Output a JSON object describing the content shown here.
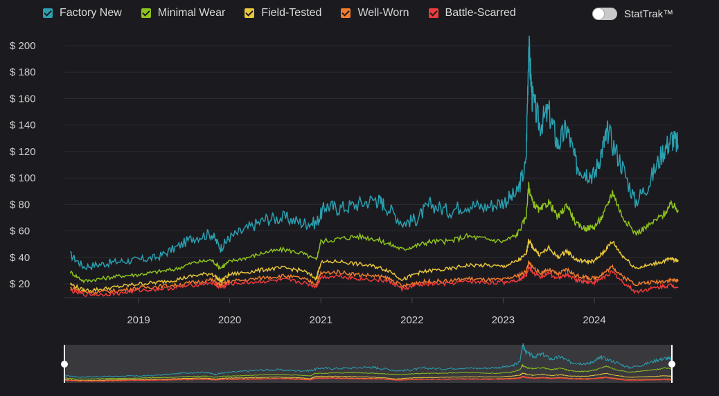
{
  "legend": [
    {
      "label": "Factory New",
      "color": "#2aa0b0"
    },
    {
      "label": "Minimal Wear",
      "color": "#8ec21e"
    },
    {
      "label": "Field-Tested",
      "color": "#e8c73a"
    },
    {
      "label": "Well-Worn",
      "color": "#f07c2c"
    },
    {
      "label": "Battle-Scarred",
      "color": "#ef3b3b"
    }
  ],
  "toggle": {
    "label": "StatTrak™",
    "on": false
  },
  "chart_data": {
    "type": "line",
    "x_ticks": [
      "2019",
      "2020",
      "2021",
      "2022",
      "2023",
      "2024"
    ],
    "y_ticks": [
      "$ 20",
      "$ 40",
      "$ 60",
      "$ 80",
      "$ 100",
      "$ 120",
      "$ 140",
      "$ 160",
      "$ 180",
      "$ 200"
    ],
    "ylim": [
      10,
      200
    ],
    "xlim": [
      2018.25,
      2024.92
    ],
    "grid": true,
    "legend_position": "top-left",
    "series": [
      {
        "name": "Factory New",
        "color": "#2aa0b0",
        "x": [
          2018.25,
          2018.4,
          2018.6,
          2018.8,
          2019.0,
          2019.2,
          2019.4,
          2019.6,
          2019.8,
          2019.9,
          2020.0,
          2020.2,
          2020.4,
          2020.6,
          2020.8,
          2020.95,
          2021.05,
          2021.2,
          2021.4,
          2021.6,
          2021.7,
          2021.9,
          2022.05,
          2022.2,
          2022.4,
          2022.6,
          2022.8,
          2023.0,
          2023.15,
          2023.25,
          2023.28,
          2023.32,
          2023.4,
          2023.5,
          2023.6,
          2023.7,
          2023.8,
          2023.9,
          2024.0,
          2024.1,
          2024.15,
          2024.3,
          2024.45,
          2024.6,
          2024.75,
          2024.85,
          2024.92
        ],
        "y": [
          42,
          33,
          35,
          37,
          38,
          40,
          47,
          55,
          58,
          47,
          55,
          62,
          69,
          70,
          66,
          66,
          79,
          77,
          80,
          84,
          80,
          66,
          69,
          80,
          75,
          80,
          78,
          82,
          88,
          110,
          200,
          160,
          140,
          150,
          125,
          138,
          110,
          105,
          102,
          125,
          135,
          110,
          82,
          96,
          120,
          130,
          125
        ]
      },
      {
        "name": "Minimal Wear",
        "color": "#8ec21e",
        "x": [
          2018.25,
          2018.4,
          2018.6,
          2018.8,
          2019.0,
          2019.2,
          2019.4,
          2019.6,
          2019.8,
          2019.9,
          2020.0,
          2020.2,
          2020.4,
          2020.6,
          2020.8,
          2020.95,
          2021.0,
          2021.2,
          2021.4,
          2021.6,
          2021.75,
          2021.9,
          2022.05,
          2022.2,
          2022.4,
          2022.6,
          2022.8,
          2023.0,
          2023.15,
          2023.25,
          2023.28,
          2023.32,
          2023.4,
          2023.5,
          2023.6,
          2023.7,
          2023.8,
          2023.9,
          2024.0,
          2024.1,
          2024.2,
          2024.3,
          2024.45,
          2024.6,
          2024.75,
          2024.85,
          2024.92
        ],
        "y": [
          29,
          22,
          24,
          26,
          27,
          29,
          31,
          36,
          38,
          32,
          37,
          40,
          44,
          46,
          43,
          38,
          52,
          54,
          56,
          54,
          50,
          46,
          49,
          52,
          52,
          56,
          54,
          52,
          57,
          70,
          94,
          82,
          75,
          82,
          70,
          80,
          65,
          62,
          63,
          72,
          90,
          72,
          58,
          64,
          72,
          80,
          76
        ]
      },
      {
        "name": "Field-Tested",
        "color": "#e8c73a",
        "x": [
          2018.25,
          2018.4,
          2018.6,
          2018.8,
          2019.0,
          2019.2,
          2019.4,
          2019.6,
          2019.8,
          2019.9,
          2020.0,
          2020.2,
          2020.4,
          2020.6,
          2020.8,
          2020.95,
          2021.0,
          2021.2,
          2021.4,
          2021.6,
          2021.75,
          2021.9,
          2022.05,
          2022.2,
          2022.4,
          2022.6,
          2022.8,
          2023.0,
          2023.15,
          2023.25,
          2023.28,
          2023.32,
          2023.4,
          2023.5,
          2023.6,
          2023.7,
          2023.8,
          2023.9,
          2024.0,
          2024.1,
          2024.2,
          2024.3,
          2024.45,
          2024.6,
          2024.75,
          2024.85,
          2024.92
        ],
        "y": [
          20,
          15,
          16,
          18,
          20,
          21,
          23,
          26,
          28,
          22,
          27,
          29,
          31,
          32,
          30,
          24,
          36,
          37,
          35,
          33,
          30,
          23,
          28,
          30,
          31,
          34,
          34,
          33,
          37,
          42,
          53,
          48,
          42,
          47,
          40,
          45,
          38,
          37,
          37,
          44,
          52,
          42,
          32,
          34,
          37,
          39,
          37
        ]
      },
      {
        "name": "Well-Worn",
        "color": "#f07c2c",
        "x": [
          2018.25,
          2018.4,
          2018.6,
          2018.8,
          2019.0,
          2019.2,
          2019.4,
          2019.6,
          2019.8,
          2019.9,
          2020.0,
          2020.2,
          2020.4,
          2020.6,
          2020.8,
          2020.95,
          2021.0,
          2021.2,
          2021.4,
          2021.6,
          2021.75,
          2021.9,
          2022.05,
          2022.2,
          2022.4,
          2022.6,
          2022.8,
          2023.0,
          2023.15,
          2023.25,
          2023.28,
          2023.32,
          2023.4,
          2023.5,
          2023.6,
          2023.7,
          2023.8,
          2023.9,
          2024.0,
          2024.1,
          2024.2,
          2024.3,
          2024.45,
          2024.6,
          2024.75,
          2024.85,
          2024.92
        ],
        "y": [
          17,
          14,
          14,
          15,
          17,
          18,
          19,
          21,
          23,
          19,
          22,
          23,
          25,
          26,
          24,
          20,
          28,
          29,
          27,
          26,
          24,
          18,
          21,
          22,
          22,
          24,
          23,
          23,
          26,
          29,
          36,
          33,
          28,
          31,
          27,
          31,
          26,
          25,
          24,
          28,
          33,
          26,
          20,
          21,
          22,
          23,
          22
        ]
      },
      {
        "name": "Battle-Scarred",
        "color": "#ef3b3b",
        "x": [
          2018.25,
          2018.4,
          2018.6,
          2018.8,
          2019.0,
          2019.2,
          2019.4,
          2019.6,
          2019.8,
          2019.9,
          2020.0,
          2020.2,
          2020.4,
          2020.6,
          2020.8,
          2020.95,
          2021.0,
          2021.2,
          2021.4,
          2021.6,
          2021.75,
          2021.9,
          2022.05,
          2022.2,
          2022.4,
          2022.6,
          2022.8,
          2023.0,
          2023.15,
          2023.25,
          2023.28,
          2023.32,
          2023.4,
          2023.5,
          2023.6,
          2023.7,
          2023.8,
          2023.9,
          2024.0,
          2024.1,
          2024.2,
          2024.3,
          2024.45,
          2024.6,
          2024.75,
          2024.85,
          2024.92
        ],
        "y": [
          15,
          12,
          12,
          13,
          15,
          16,
          17,
          19,
          21,
          17,
          20,
          21,
          22,
          23,
          21,
          18,
          25,
          26,
          24,
          23,
          22,
          16,
          19,
          20,
          20,
          22,
          21,
          21,
          23,
          26,
          33,
          29,
          25,
          28,
          24,
          27,
          23,
          22,
          21,
          25,
          29,
          22,
          14,
          16,
          18,
          19,
          17
        ]
      }
    ]
  }
}
